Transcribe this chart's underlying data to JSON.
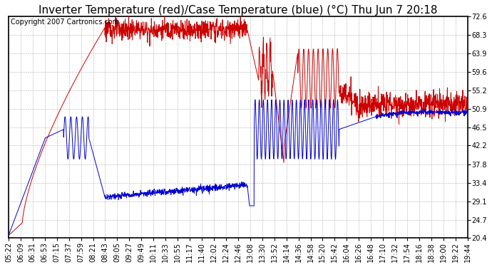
{
  "title": "Inverter Temperature (red)/Case Temperature (blue) (°C) Thu Jun 7 20:18",
  "copyright": "Copyright 2007 Cartronics.com",
  "ylim": [
    20.4,
    72.6
  ],
  "yticks": [
    20.4,
    24.7,
    29.1,
    33.4,
    37.8,
    42.2,
    46.5,
    50.9,
    55.2,
    59.6,
    63.9,
    68.3,
    72.6
  ],
  "x_labels": [
    "05:22",
    "06:09",
    "06:31",
    "06:53",
    "07:15",
    "07:37",
    "07:59",
    "08:21",
    "08:43",
    "09:05",
    "09:27",
    "09:49",
    "10:11",
    "10:33",
    "10:55",
    "11:17",
    "11:40",
    "12:02",
    "12:24",
    "12:46",
    "13:08",
    "13:30",
    "13:52",
    "14:14",
    "14:36",
    "14:58",
    "15:20",
    "15:42",
    "16:04",
    "16:26",
    "16:48",
    "17:10",
    "17:32",
    "17:54",
    "18:16",
    "18:38",
    "19:00",
    "19:22",
    "19:44"
  ],
  "bg_color": "#ffffff",
  "plot_bg_color": "#ffffff",
  "grid_color": "#b0b0b0",
  "red_color": "#cc0000",
  "blue_color": "#0000cc",
  "title_fontsize": 11,
  "tick_fontsize": 7,
  "copyright_fontsize": 7
}
